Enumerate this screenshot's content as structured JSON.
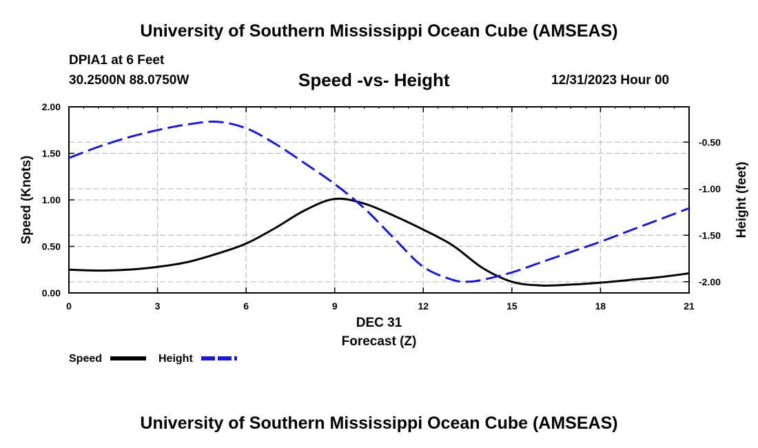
{
  "header": {
    "title": "University of Southern Mississippi Ocean Cube (AMSEAS)",
    "station": "DPIA1 at 6 Feet",
    "coords": "30.2500N  88.0750W",
    "subtitle": "Speed -vs- Height",
    "datetime": "12/31/2023 Hour 00"
  },
  "footer": {
    "title": "University of Southern Mississippi Ocean Cube (AMSEAS)"
  },
  "chart_data": {
    "type": "line",
    "title": "Speed -vs- Height",
    "xlabel": "Forecast (Z)",
    "xdate_label": "DEC 31",
    "ylabel_left": "Speed (Knots)",
    "ylabel_right": "Height (feet)",
    "xlim": [
      0,
      21
    ],
    "ylim_left": [
      0,
      2.0
    ],
    "ylim_right": [
      -2.12,
      -0.12
    ],
    "x_ticks": [
      "0",
      "3",
      "6",
      "9",
      "12",
      "15",
      "18",
      "21"
    ],
    "y_left_ticks": [
      "0.00",
      "0.50",
      "1.00",
      "1.50",
      "2.00"
    ],
    "y_right_ticks": [
      "-0.50",
      "-1.00",
      "-1.50",
      "-2.00"
    ],
    "grid": true,
    "legend_placement": "bottom-left",
    "series": [
      {
        "name": "Speed",
        "axis": "left",
        "color": "#000000",
        "style": "solid",
        "x": [
          0,
          1,
          2,
          3,
          4,
          5,
          6,
          7,
          8,
          9,
          10,
          11,
          12,
          13,
          14,
          15,
          16,
          17,
          18,
          19,
          20,
          21
        ],
        "values": [
          0.25,
          0.24,
          0.25,
          0.28,
          0.33,
          0.42,
          0.53,
          0.7,
          0.89,
          1.01,
          0.96,
          0.83,
          0.68,
          0.51,
          0.27,
          0.12,
          0.08,
          0.09,
          0.11,
          0.14,
          0.17,
          0.21
        ]
      },
      {
        "name": "Height",
        "axis": "right",
        "color": "#1a1acc",
        "style": "dashed",
        "x": [
          0,
          1,
          2,
          3,
          4,
          5,
          6,
          7,
          8,
          9,
          10,
          11,
          12,
          13,
          13.5,
          14,
          15,
          16,
          17,
          18,
          19,
          20,
          21
        ],
        "values": [
          -0.67,
          -0.55,
          -0.45,
          -0.37,
          -0.31,
          -0.28,
          -0.35,
          -0.52,
          -0.73,
          -0.95,
          -1.21,
          -1.53,
          -1.84,
          -1.98,
          -2.0,
          -1.98,
          -1.9,
          -1.79,
          -1.68,
          -1.57,
          -1.45,
          -1.33,
          -1.21
        ]
      }
    ]
  }
}
